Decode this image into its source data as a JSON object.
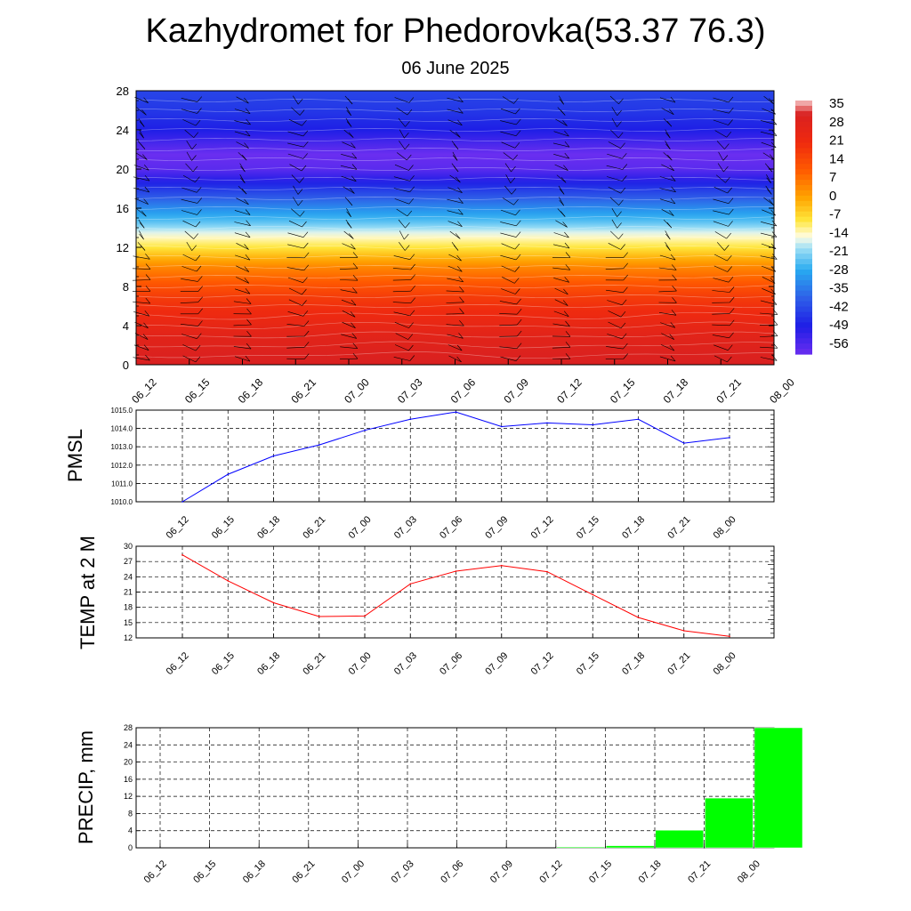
{
  "header": {
    "title": "Kazhydromet for Phedorovka(53.37 76.3)",
    "subtitle": "06 June 2025"
  },
  "colors": {
    "pmsl_line": "#0000ff",
    "temp_line": "#ff0000",
    "precip_bar": "#00ff00"
  },
  "chart_data": [
    {
      "type": "heatmap",
      "title": "",
      "x": [
        "06_12",
        "06_15",
        "06_18",
        "06_21",
        "07_00",
        "07_03",
        "07_06",
        "07_09",
        "07_12",
        "07_15",
        "07_18",
        "07_21",
        "08_00"
      ],
      "ylim": [
        0,
        28
      ],
      "yticks": [
        0,
        4,
        8,
        12,
        16,
        20,
        24,
        28
      ],
      "colorbar_labels": [
        "35",
        "28",
        "21",
        "14",
        "7",
        "0",
        "-7",
        "-14",
        "-21",
        "-28",
        "-35",
        "-42",
        "-49",
        "-56"
      ],
      "overlays": [
        "temperature contours",
        "wind barbs"
      ],
      "colorscale": [
        {
          "value": 35,
          "color": "#f5c6c6"
        },
        {
          "value": 30,
          "color": "#d92020"
        },
        {
          "value": 20,
          "color": "#ef2a0f"
        },
        {
          "value": 10,
          "color": "#ff5a00"
        },
        {
          "value": 0,
          "color": "#ffa500"
        },
        {
          "value": -8,
          "color": "#ffe63c"
        },
        {
          "value": -14,
          "color": "#fffde6"
        },
        {
          "value": -18,
          "color": "#a0e0f5"
        },
        {
          "value": -26,
          "color": "#28aaf0"
        },
        {
          "value": -36,
          "color": "#2e5fe8"
        },
        {
          "value": -46,
          "color": "#1e1ee6"
        },
        {
          "value": -56,
          "color": "#6a2ef0"
        }
      ],
      "vertical_profile": [
        {
          "y": 0,
          "value": 30
        },
        {
          "y": 3,
          "value": 26
        },
        {
          "y": 7,
          "value": 16
        },
        {
          "y": 10,
          "value": 4
        },
        {
          "y": 12,
          "value": -8
        },
        {
          "y": 13.3,
          "value": -14
        },
        {
          "y": 14.5,
          "value": -22
        },
        {
          "y": 16,
          "value": -30
        },
        {
          "y": 18,
          "value": -42
        },
        {
          "y": 20,
          "value": -54
        },
        {
          "y": 21.5,
          "value": -56
        },
        {
          "y": 24,
          "value": -46
        },
        {
          "y": 26,
          "value": -42
        },
        {
          "y": 28,
          "value": -40
        }
      ]
    },
    {
      "type": "line",
      "ylabel": "PMSL",
      "categories": [
        "06_12",
        "06_15",
        "06_18",
        "06_21",
        "07_00",
        "07_03",
        "07_06",
        "07_09",
        "07_12",
        "07_15",
        "07_18",
        "07_21",
        "08_00"
      ],
      "values": [
        1010.0,
        1011.5,
        1012.5,
        1013.1,
        1013.9,
        1014.5,
        1014.9,
        1014.1,
        1014.3,
        1014.2,
        1014.5,
        1013.2,
        1013.5
      ],
      "ylim": [
        1010.0,
        1015.0
      ],
      "yticks": [
        "1010.0",
        "1011.0",
        "1012.0",
        "1013.0",
        "1014.0",
        "1015.0"
      ],
      "grid": true
    },
    {
      "type": "line",
      "ylabel": "TEMP at 2 M",
      "categories": [
        "06_12",
        "06_15",
        "06_18",
        "06_21",
        "07_00",
        "07_03",
        "07_06",
        "07_09",
        "07_12",
        "07_15",
        "07_18",
        "07_21",
        "08_00"
      ],
      "values": [
        28.3,
        23.2,
        18.9,
        16.2,
        16.3,
        22.6,
        25.1,
        26.2,
        25.0,
        20.5,
        16.0,
        13.4,
        12.3
      ],
      "ylim": [
        12,
        30
      ],
      "yticks": [
        "12",
        "15",
        "18",
        "21",
        "24",
        "27",
        "30"
      ],
      "grid": true
    },
    {
      "type": "bar",
      "ylabel": "PRECIP, mm",
      "categories": [
        "06_12",
        "06_15",
        "06_18",
        "06_21",
        "07_00",
        "07_03",
        "07_06",
        "07_09",
        "07_12",
        "07_15",
        "07_18",
        "07_21",
        "08_00"
      ],
      "values": [
        0,
        0,
        0,
        0,
        0,
        0,
        0,
        0,
        0.2,
        0.5,
        4.1,
        11.6,
        28.0
      ],
      "ylim": [
        0,
        28
      ],
      "yticks": [
        "0",
        "4",
        "8",
        "12",
        "16",
        "20",
        "24",
        "28"
      ],
      "grid": true
    }
  ]
}
